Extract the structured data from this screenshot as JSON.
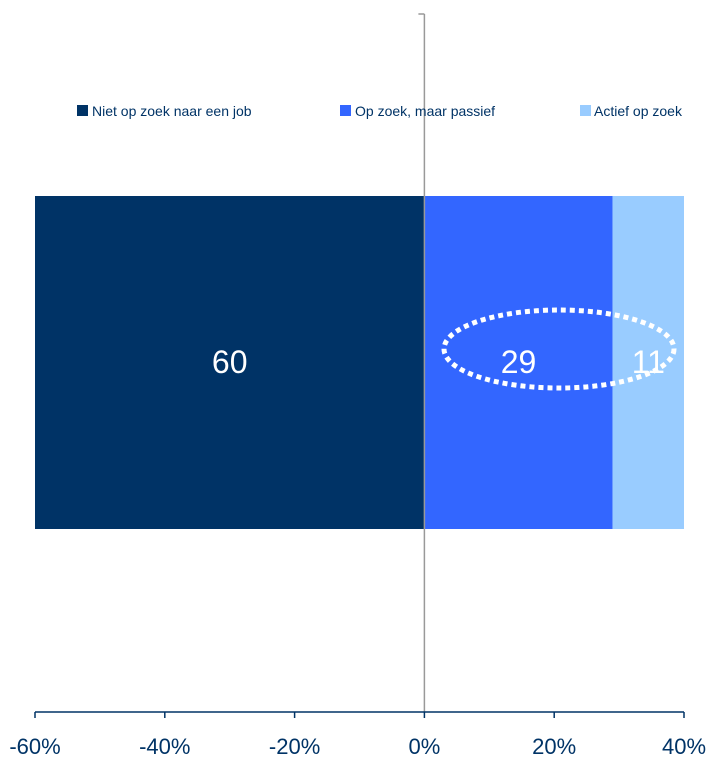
{
  "chart_data": {
    "type": "bar",
    "orientation": "horizontal",
    "stacked": true,
    "diverging": true,
    "categories": [
      ""
    ],
    "series": [
      {
        "name": "Niet op zoek naar een job",
        "values": [
          -60
        ],
        "label": "60",
        "color": "#003366"
      },
      {
        "name": "Op zoek, maar passief",
        "values": [
          29
        ],
        "label": "29",
        "color": "#3366ff"
      },
      {
        "name": "Actief op zoek",
        "values": [
          11
        ],
        "label": "11",
        "color": "#99ccff"
      }
    ],
    "xlim": [
      -60,
      40
    ],
    "xticks": [
      -60,
      -40,
      -20,
      0,
      20,
      40
    ],
    "xtick_labels": [
      "-60%",
      "-40%",
      "-20%",
      "0%",
      "20%",
      "40%"
    ],
    "title": "",
    "xlabel": "",
    "ylabel": "",
    "grid": false,
    "legend": "top",
    "annotation": "dotted ellipse around 29 and 11"
  }
}
